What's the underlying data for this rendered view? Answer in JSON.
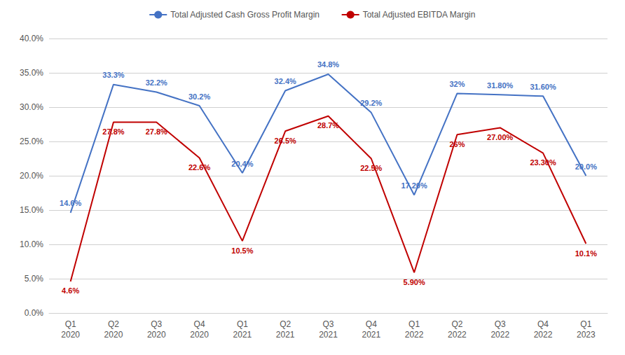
{
  "chart_data": {
    "type": "line",
    "categories": [
      "Q1\n2020",
      "Q2\n2020",
      "Q3\n2020",
      "Q4\n2020",
      "Q1\n2021",
      "Q2\n2021",
      "Q3\n2021",
      "Q4\n2021",
      "Q1\n2022",
      "Q2\n2022",
      "Q3\n2022",
      "Q4\n2022",
      "Q1\n2023"
    ],
    "series": [
      {
        "name": "Total Adjusted Cash Gross Profit Margin",
        "color": "#4472C4",
        "values": [
          14.6,
          33.3,
          32.2,
          30.2,
          20.4,
          32.4,
          34.8,
          29.2,
          17.2,
          32.0,
          31.8,
          31.6,
          20.0
        ],
        "value_labels": [
          "14.6%",
          "33.3%",
          "32.2%",
          "30.2%",
          "20.4%",
          "32.4%",
          "34.8%",
          "29.2%",
          "17.20%",
          "32%",
          "31.80%",
          "31.60%",
          "20.0%"
        ]
      },
      {
        "name": "Total Adjusted EBITDA Margin",
        "color": "#C00000",
        "values": [
          4.6,
          27.8,
          27.8,
          22.6,
          10.5,
          26.5,
          28.7,
          22.5,
          5.9,
          26.0,
          27.0,
          23.3,
          10.1
        ],
        "value_labels": [
          "4.6%",
          "27.8%",
          "27.8%",
          "22.6%",
          "10.5%",
          "26.5%",
          "28.7%",
          "22.5%",
          "5.90%",
          "26%",
          "27.00%",
          "23.30%",
          "10.1%"
        ]
      }
    ],
    "ylim": [
      0,
      40
    ],
    "yticks": [
      {
        "value": 0,
        "label": "0.0%"
      },
      {
        "value": 5,
        "label": "5.0%"
      },
      {
        "value": 10,
        "label": "10.0%"
      },
      {
        "value": 15,
        "label": "15.0%"
      },
      {
        "value": 20,
        "label": "20.0%"
      },
      {
        "value": 25,
        "label": "25.0%"
      },
      {
        "value": 30,
        "label": "30.0%"
      },
      {
        "value": 35,
        "label": "35.0%"
      },
      {
        "value": 40,
        "label": "40.0%"
      }
    ],
    "grid": true,
    "legend": "top",
    "data_labels": true
  }
}
